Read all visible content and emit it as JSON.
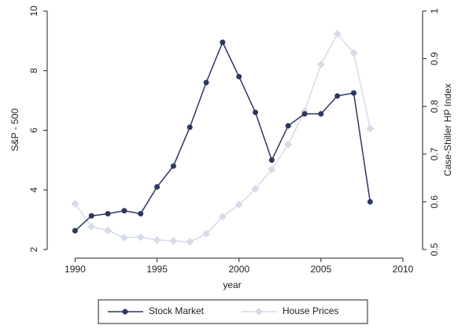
{
  "chart_data": {
    "type": "line",
    "x_label": "year",
    "y_label": "S&P - 500",
    "y2_label": "Case-Shiller HP Index",
    "x": [
      1990,
      1991,
      1992,
      1993,
      1994,
      1995,
      1996,
      1997,
      1998,
      1999,
      2000,
      2001,
      2002,
      2003,
      2004,
      2005,
      2006,
      2007,
      2008
    ],
    "series": [
      {
        "name": "Stock Market",
        "color": "#2e3760",
        "values": [
          2.63,
          3.13,
          3.2,
          3.3,
          3.2,
          4.1,
          4.8,
          6.1,
          7.6,
          8.95,
          7.8,
          6.6,
          5.0,
          6.15,
          6.55,
          6.55,
          7.15,
          7.25,
          3.6
        ]
      },
      {
        "name": "House Prices",
        "color": "#d6dbe8",
        "axis": "y2",
        "values": [
          0.596,
          0.548,
          0.54,
          0.525,
          0.526,
          0.52,
          0.518,
          0.516,
          0.533,
          0.569,
          0.594,
          0.627,
          0.668,
          0.72,
          0.79,
          0.888,
          0.952,
          0.912,
          0.754
        ]
      }
    ],
    "xlim": [
      1988.3,
      2011.2
    ],
    "xticks": [
      1990,
      1995,
      2000,
      2005,
      2010
    ],
    "ylim": [
      2,
      10
    ],
    "yticks": [
      2,
      4,
      6,
      8,
      10
    ],
    "y2lim": [
      0.5,
      1
    ],
    "y2ticks": [
      0.5,
      0.6,
      0.7,
      0.8,
      0.9,
      1
    ],
    "legend": "bottom"
  }
}
